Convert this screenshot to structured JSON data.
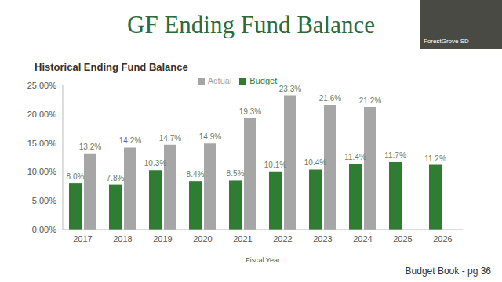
{
  "chart_data": {
    "type": "bar",
    "title": "GF Ending Fund Balance",
    "subtitle": "Historical Ending Fund Balance",
    "x_label": "Fiscal Year",
    "annotations": [
      "Budget Book - pg 36",
      "ForestGrove SD"
    ],
    "categories": [
      "2017",
      "2018",
      "2019",
      "2020",
      "2021",
      "2022",
      "2023",
      "2024",
      "2025",
      "2026"
    ],
    "series": [
      {
        "name": "Budget",
        "color": "#2f7d32",
        "values": [
          8.0,
          7.8,
          10.3,
          8.4,
          8.5,
          10.1,
          10.4,
          11.4,
          11.7,
          11.2
        ],
        "value_labels": [
          "8.0%",
          "7.8%",
          "10.3%",
          "8.4%",
          "8.5%",
          "10.1%",
          "10.4%",
          "11.4%",
          "11.7%",
          "11.2%"
        ]
      },
      {
        "name": "Actual",
        "color": "#a6a6a6",
        "values": [
          13.2,
          14.2,
          14.7,
          14.9,
          19.3,
          23.3,
          21.6,
          21.2,
          null,
          null
        ],
        "value_labels": [
          "13.2%",
          "14.2%",
          "14.7%",
          "14.9%",
          "19.3%",
          "23.3%",
          "21.6%",
          "21.2%",
          null,
          null
        ]
      }
    ],
    "ylim": [
      0,
      25
    ],
    "yticks": [
      {
        "value": 0,
        "label": "0.00%"
      },
      {
        "value": 5,
        "label": "5.00%"
      },
      {
        "value": 10,
        "label": "10.00%"
      },
      {
        "value": 15,
        "label": "15.00%"
      },
      {
        "value": 20,
        "label": "20.00%"
      },
      {
        "value": 25,
        "label": "25.00%"
      }
    ],
    "grid": false,
    "legend": "top",
    "data_labels": true
  }
}
